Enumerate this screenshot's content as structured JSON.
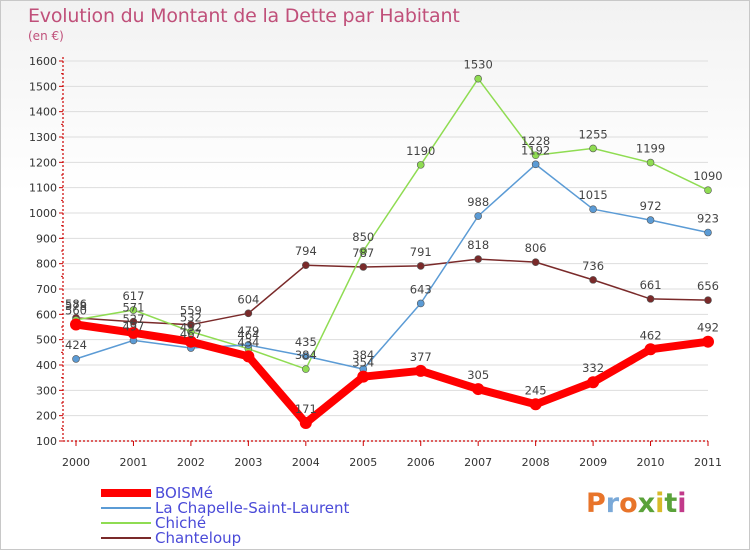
{
  "title": "Evolution du Montant de la Dette par Habitant",
  "unit": "(en €)",
  "logo": {
    "text": "Proxiti",
    "colors": [
      "#e8742a",
      "#7aa9d8",
      "#e8742a",
      "#5aa23a",
      "#d8ba2a",
      "#5aa23a",
      "#c23a8a"
    ]
  },
  "colors": {
    "title": "#c0507a",
    "legend_text": "#4a4ad8",
    "axis": "#cc0000",
    "grid": "#dddddd",
    "label": "#444444"
  },
  "chart_data": {
    "type": "line",
    "title": "Evolution du Montant de la Dette par Habitant",
    "ylabel": "(en €)",
    "xlabel": "",
    "ylim": [
      100,
      1600
    ],
    "yticks": [
      100,
      200,
      300,
      400,
      500,
      600,
      700,
      800,
      900,
      1000,
      1100,
      1200,
      1300,
      1400,
      1500,
      1600
    ],
    "x": [
      "2000",
      "2001",
      "2002",
      "2003",
      "2004",
      "2005",
      "2006",
      "2007",
      "2008",
      "2009",
      "2010",
      "2011"
    ],
    "grid": "horizontal",
    "legend": "bottom-left",
    "series": [
      {
        "name": "BOISMé",
        "color": "#ff0000",
        "width": 8,
        "marker": 6,
        "values": [
          560,
          527,
          492,
          434,
          171,
          354,
          377,
          305,
          245,
          332,
          462,
          492
        ],
        "labels": [
          "560",
          "527",
          "492",
          "434",
          "171",
          "354",
          "377",
          "305",
          "245",
          "332",
          "462",
          "492"
        ]
      },
      {
        "name": "La Chapelle-Saint-Laurent",
        "color": "#5b9bd5",
        "width": 1.5,
        "marker": 3.5,
        "values": [
          424,
          497,
          467,
          479,
          435,
          384,
          643,
          988,
          1192,
          1015,
          972,
          923
        ],
        "labels": [
          "424",
          "497",
          "467",
          "479",
          "435",
          "384",
          "643",
          "988",
          "1192",
          "1015",
          "972",
          "923"
        ]
      },
      {
        "name": "Chiché",
        "color": "#8fdc52",
        "width": 1.5,
        "marker": 3.5,
        "values": [
          578,
          617,
          532,
          464,
          384,
          850,
          1190,
          1530,
          1228,
          1255,
          1199,
          1090
        ],
        "labels": [
          "578",
          "617",
          "532",
          "464",
          "384",
          "850",
          "1190",
          "1530",
          "1228",
          "1255",
          "1199",
          "1090"
        ]
      },
      {
        "name": "Chanteloup",
        "color": "#7a2a2a",
        "width": 1.5,
        "marker": 3.5,
        "values": [
          586,
          571,
          559,
          604,
          794,
          787,
          791,
          818,
          806,
          736,
          661,
          656
        ],
        "labels": [
          "586",
          "571",
          "559",
          "604",
          "794",
          "787",
          "791",
          "818",
          "806",
          "736",
          "661",
          "656"
        ]
      }
    ]
  }
}
